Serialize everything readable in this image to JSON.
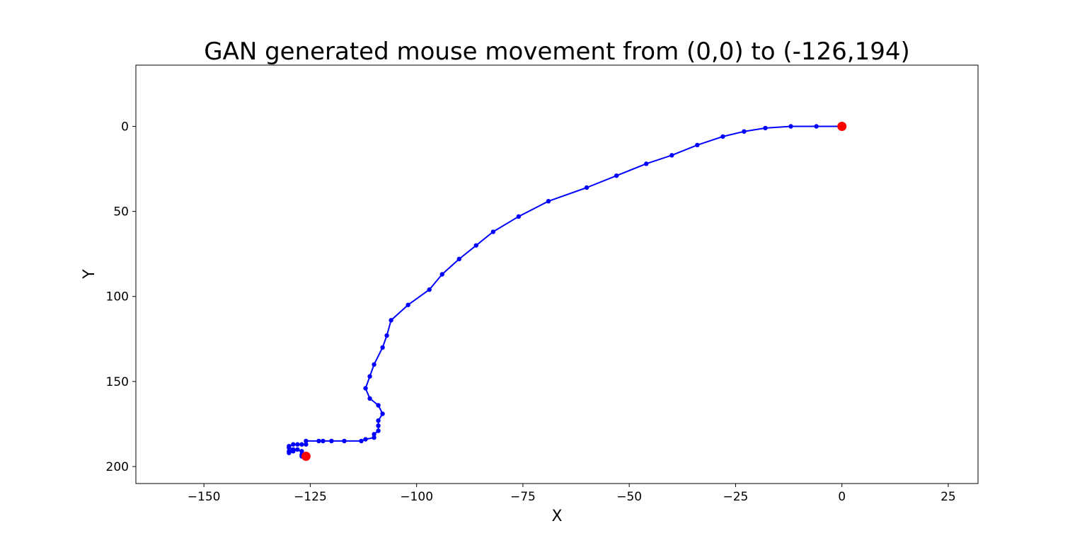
{
  "chart_data": {
    "type": "line",
    "title": "GAN generated mouse movement from (0,0) to (-126,194)",
    "xlabel": "X",
    "ylabel": "Y",
    "xlim": [
      -166,
      32
    ],
    "ylim": [
      210,
      -36
    ],
    "y_inverted": true,
    "grid": false,
    "x_ticks": [
      -150,
      -125,
      -100,
      -75,
      -50,
      -25,
      0,
      25
    ],
    "x_tick_labels": [
      "−150",
      "−125",
      "−100",
      "−75",
      "−50",
      "−25",
      "0",
      "25"
    ],
    "y_ticks": [
      0,
      50,
      100,
      150,
      200
    ],
    "y_tick_labels": [
      "0",
      "50",
      "100",
      "150",
      "200"
    ],
    "series": [
      {
        "color": "#0000ff",
        "marker": "circle",
        "points": [
          [
            0,
            0
          ],
          [
            -6,
            0
          ],
          [
            -12,
            0
          ],
          [
            -18,
            1
          ],
          [
            -23,
            3
          ],
          [
            -28,
            6
          ],
          [
            -34,
            11
          ],
          [
            -40,
            17
          ],
          [
            -46,
            22
          ],
          [
            -53,
            29
          ],
          [
            -60,
            36
          ],
          [
            -69,
            44
          ],
          [
            -76,
            53
          ],
          [
            -82,
            62
          ],
          [
            -86,
            70
          ],
          [
            -90,
            78
          ],
          [
            -94,
            87
          ],
          [
            -97,
            96
          ],
          [
            -102,
            105
          ],
          [
            -106,
            114
          ],
          [
            -107,
            123
          ],
          [
            -108,
            130
          ],
          [
            -110,
            140
          ],
          [
            -111,
            147
          ],
          [
            -112,
            154
          ],
          [
            -111,
            160
          ],
          [
            -109,
            164
          ],
          [
            -108,
            169
          ],
          [
            -109,
            173
          ],
          [
            -109,
            176
          ],
          [
            -109,
            179
          ],
          [
            -110,
            181
          ],
          [
            -110,
            183
          ],
          [
            -112,
            184
          ],
          [
            -113,
            185
          ],
          [
            -117,
            185
          ],
          [
            -120,
            185
          ],
          [
            -122,
            185
          ],
          [
            -123,
            185
          ],
          [
            -126,
            185
          ],
          [
            -126,
            187
          ],
          [
            -127,
            187
          ],
          [
            -128,
            187
          ],
          [
            -129,
            187
          ],
          [
            -130,
            188
          ],
          [
            -130,
            189
          ],
          [
            -129,
            190
          ],
          [
            -130,
            191
          ],
          [
            -130,
            192
          ],
          [
            -129,
            191
          ],
          [
            -128,
            190
          ],
          [
            -127,
            191
          ],
          [
            -127,
            193
          ],
          [
            -127,
            194
          ],
          [
            -126,
            194
          ]
        ]
      }
    ],
    "endpoints": {
      "color": "#ff0000",
      "points": [
        [
          0,
          0
        ],
        [
          -126,
          194
        ]
      ]
    }
  }
}
